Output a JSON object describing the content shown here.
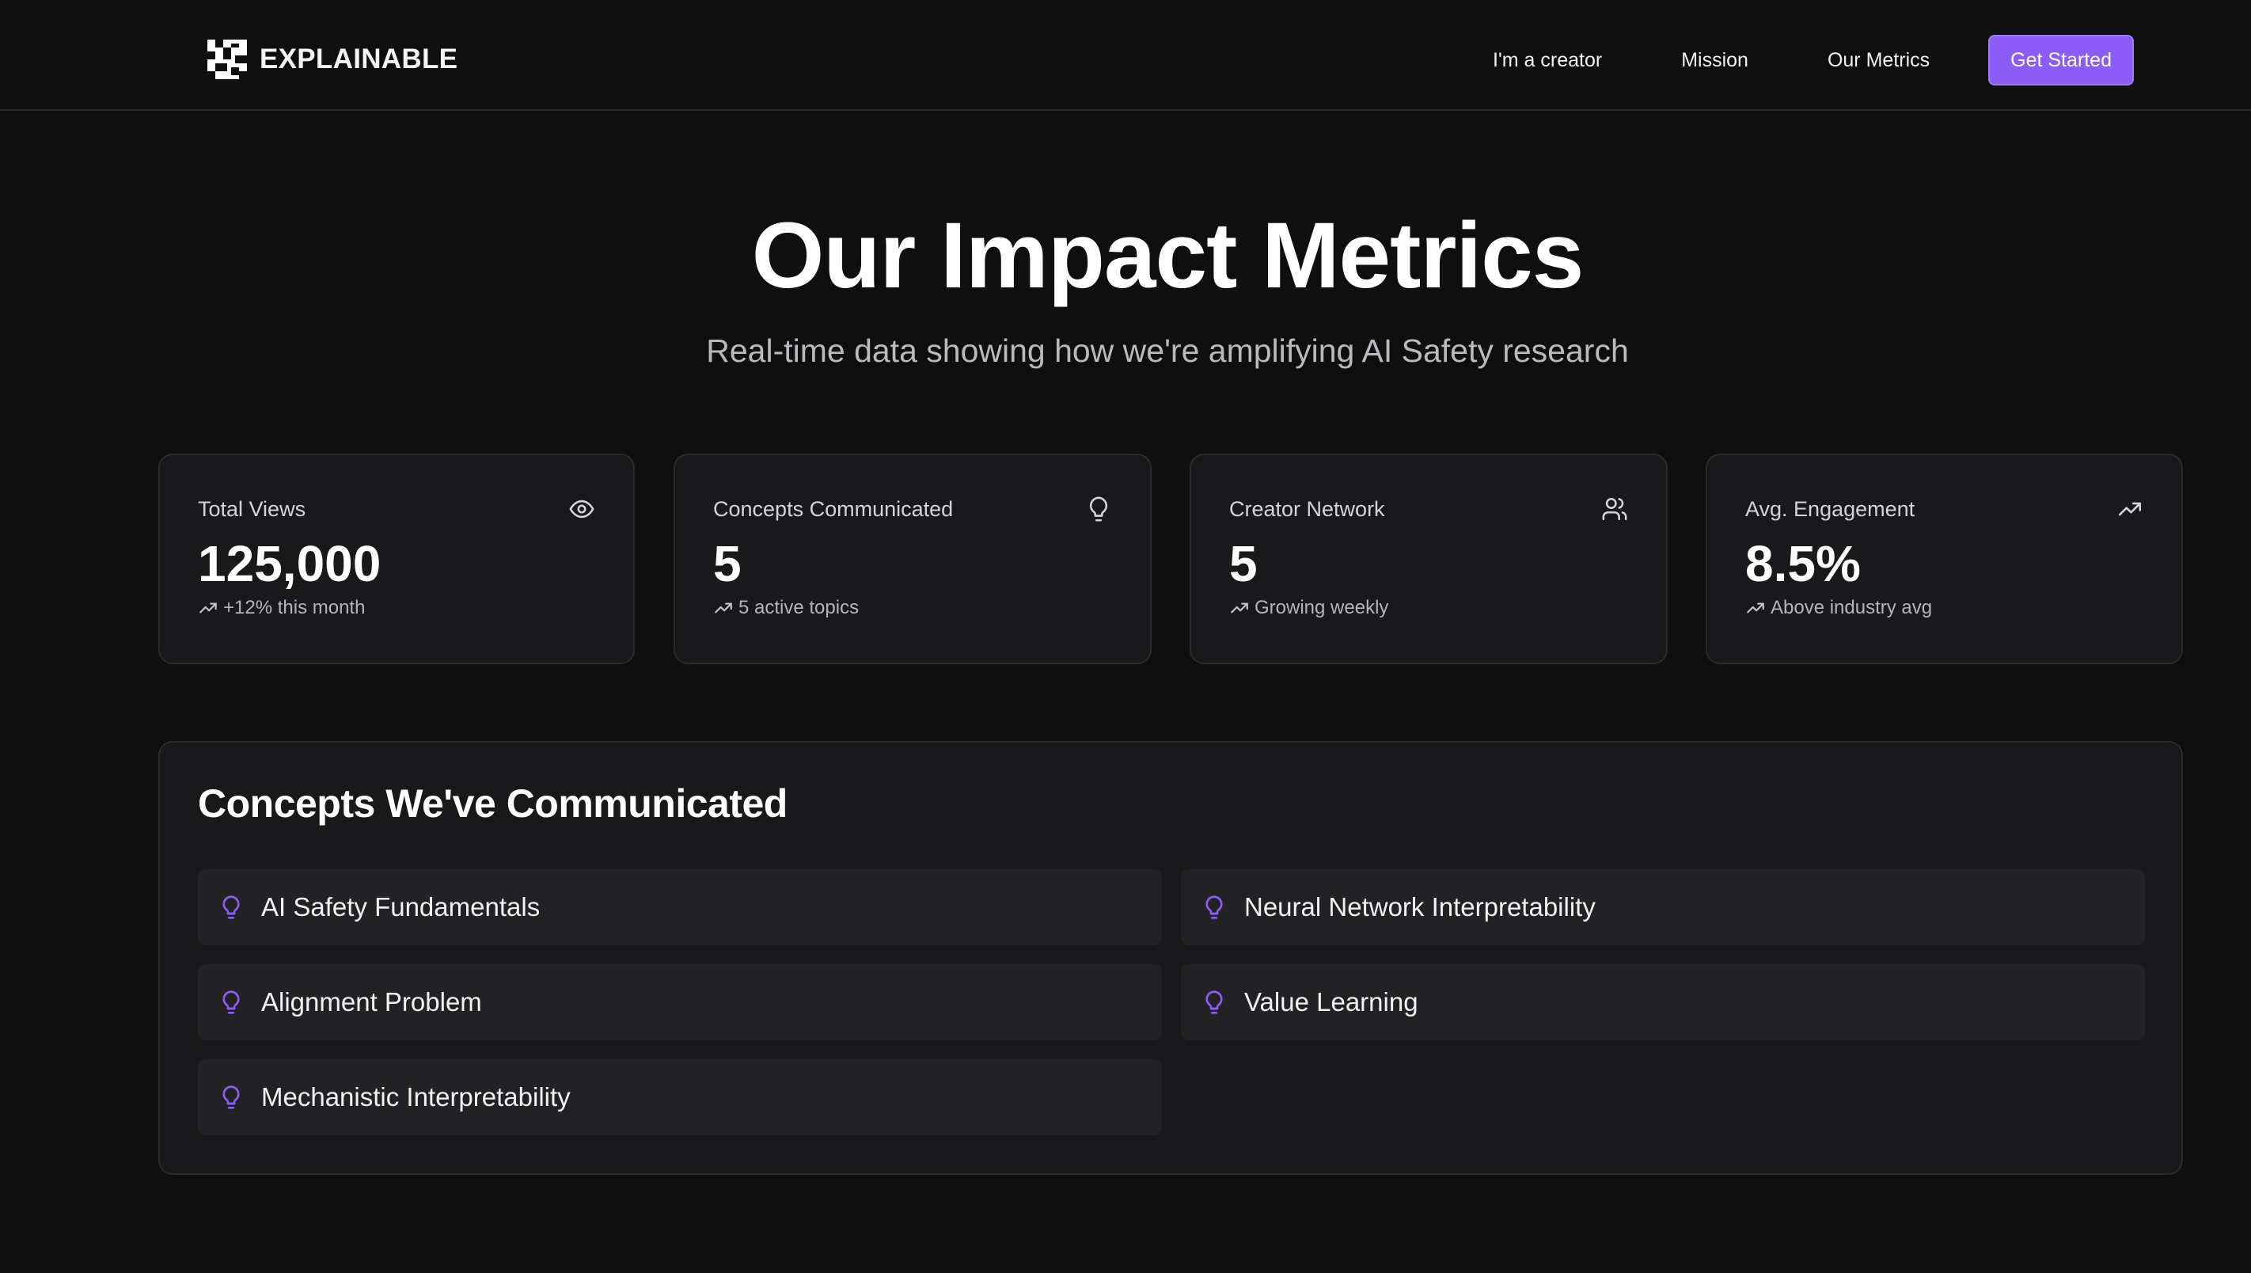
{
  "header": {
    "brand": "EXPLAINABLE",
    "nav": [
      {
        "label": "I'm a creator"
      },
      {
        "label": "Mission"
      },
      {
        "label": "Our Metrics"
      }
    ],
    "cta_label": "Get Started"
  },
  "hero": {
    "title": "Our Impact Metrics",
    "subtitle": "Real-time data showing how we're amplifying AI Safety research"
  },
  "stats": [
    {
      "label": "Total Views",
      "value": "125,000",
      "trend": "+12% this month",
      "icon": "eye-icon"
    },
    {
      "label": "Concepts Communicated",
      "value": "5",
      "trend": "5 active topics",
      "icon": "lightbulb-icon"
    },
    {
      "label": "Creator Network",
      "value": "5",
      "trend": "Growing weekly",
      "icon": "users-icon"
    },
    {
      "label": "Avg. Engagement",
      "value": "8.5%",
      "trend": "Above industry avg",
      "icon": "trending-up-icon"
    }
  ],
  "concepts": {
    "title": "Concepts We've Communicated",
    "items": [
      {
        "label": "AI Safety Fundamentals"
      },
      {
        "label": "Neural Network Interpretability"
      },
      {
        "label": "Alignment Problem"
      },
      {
        "label": "Value Learning"
      },
      {
        "label": "Mechanistic Interpretability"
      }
    ]
  },
  "colors": {
    "accent": "#8b5cf6",
    "background": "#0f0f10",
    "card": "#19191b"
  }
}
